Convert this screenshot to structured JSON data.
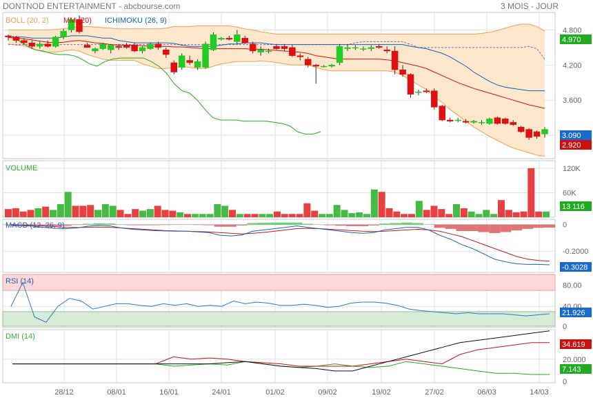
{
  "header": {
    "title": "DONTNOD ENTERTAINMENT - abcbourse.com",
    "period": "3 MOIS - JOUR"
  },
  "colors": {
    "up": "#22cc22",
    "down": "#e01010",
    "boll": "#f0a050",
    "boll_fill": "#fde7cc",
    "mm": "#d01010",
    "ichimoku": "#1060c0",
    "green_line": "#22aa22",
    "volume": "#44bb44",
    "rsi": "#2a78c8",
    "badge_green": "#22aa22",
    "badge_red": "#cc1111",
    "badge_blue": "#1a6acb"
  },
  "chart_data": [
    {
      "type": "candlestick",
      "panel": "price",
      "legend": [
        {
          "label": "BOLL (20, 2)",
          "color": "#f0a050"
        },
        {
          "label": "MM (20)",
          "color": "#d01010"
        },
        {
          "label": "ICHIMOKU (26, 9)",
          "color": "#1060c0"
        }
      ],
      "ylim": [
        2.6,
        5.1
      ],
      "yticks": [
        "4.800",
        "4.200",
        "3.600"
      ],
      "x_labels": [
        "28/12",
        "08/01",
        "16/01",
        "24/01",
        "01/02",
        "09/02",
        "19/02",
        "27/02",
        "06/03",
        "14/03"
      ],
      "candles": [
        [
          4.7,
          4.72,
          4.62,
          4.68
        ],
        [
          4.68,
          4.7,
          4.58,
          4.62
        ],
        [
          4.62,
          4.66,
          4.55,
          4.58
        ],
        [
          4.58,
          4.62,
          4.48,
          4.52
        ],
        [
          4.52,
          4.6,
          4.48,
          4.56
        ],
        [
          4.56,
          4.62,
          4.5,
          4.52
        ],
        [
          4.52,
          4.7,
          4.5,
          4.68
        ],
        [
          4.68,
          4.82,
          4.64,
          4.78
        ],
        [
          4.8,
          5.0,
          4.76,
          4.98
        ],
        [
          4.98,
          5.05,
          4.74,
          4.77
        ],
        [
          4.54,
          4.58,
          4.5,
          4.5
        ],
        [
          4.44,
          4.5,
          4.4,
          4.48
        ],
        [
          4.48,
          4.58,
          4.46,
          4.56
        ],
        [
          4.46,
          4.56,
          4.4,
          4.54
        ],
        [
          4.52,
          4.56,
          4.46,
          4.5
        ],
        [
          4.54,
          4.58,
          4.48,
          4.5
        ],
        [
          4.54,
          4.58,
          4.42,
          4.44
        ],
        [
          4.44,
          4.52,
          4.4,
          4.5
        ],
        [
          4.48,
          4.58,
          4.46,
          4.56
        ],
        [
          4.56,
          4.6,
          4.46,
          4.5
        ],
        [
          4.46,
          4.5,
          4.32,
          4.38
        ],
        [
          4.24,
          4.28,
          4.04,
          4.08
        ],
        [
          4.16,
          4.4,
          4.12,
          4.36
        ],
        [
          4.28,
          4.36,
          4.2,
          4.24
        ],
        [
          4.16,
          4.3,
          4.12,
          4.26
        ],
        [
          4.16,
          4.6,
          4.14,
          4.56
        ],
        [
          4.46,
          4.76,
          4.44,
          4.72
        ],
        [
          4.64,
          4.68,
          4.62,
          4.66
        ],
        [
          4.66,
          4.7,
          4.62,
          4.64
        ],
        [
          4.6,
          4.8,
          4.56,
          4.72
        ],
        [
          4.66,
          4.7,
          4.56,
          4.58
        ],
        [
          4.56,
          4.6,
          4.4,
          4.44
        ],
        [
          4.42,
          4.52,
          4.36,
          4.46
        ],
        [
          4.44,
          4.48,
          4.4,
          4.44
        ],
        [
          4.52,
          4.56,
          4.46,
          4.48
        ],
        [
          4.52,
          4.56,
          4.44,
          4.48
        ],
        [
          4.5,
          4.54,
          4.34,
          4.36
        ],
        [
          4.36,
          4.4,
          4.28,
          4.34
        ],
        [
          4.3,
          4.34,
          4.16,
          4.2
        ],
        [
          4.2,
          4.22,
          3.88,
          4.18
        ],
        [
          4.18,
          4.2,
          4.16,
          4.18
        ],
        [
          4.18,
          4.22,
          4.16,
          4.2
        ],
        [
          4.24,
          4.56,
          4.2,
          4.52
        ],
        [
          4.48,
          4.56,
          4.44,
          4.5
        ],
        [
          4.5,
          4.54,
          4.46,
          4.5
        ],
        [
          4.48,
          4.52,
          4.44,
          4.48
        ],
        [
          4.48,
          4.54,
          4.44,
          4.5
        ],
        [
          4.52,
          4.56,
          4.48,
          4.5
        ],
        [
          4.46,
          4.52,
          4.4,
          4.44
        ],
        [
          4.44,
          4.52,
          4.04,
          4.12
        ],
        [
          4.12,
          4.2,
          4.0,
          4.04
        ],
        [
          4.04,
          4.06,
          3.64,
          3.7
        ],
        [
          3.74,
          3.78,
          3.68,
          3.74
        ],
        [
          3.76,
          3.8,
          3.72,
          3.74
        ],
        [
          3.76,
          3.8,
          3.44,
          3.48
        ],
        [
          3.5,
          3.52,
          3.24,
          3.26
        ],
        [
          3.26,
          3.3,
          3.22,
          3.24
        ],
        [
          3.26,
          3.3,
          3.22,
          3.26
        ],
        [
          3.24,
          3.28,
          3.2,
          3.22
        ],
        [
          3.22,
          3.26,
          3.2,
          3.24
        ],
        [
          3.22,
          3.26,
          3.18,
          3.22
        ],
        [
          3.2,
          3.3,
          3.18,
          3.28
        ],
        [
          3.3,
          3.32,
          3.18,
          3.2
        ],
        [
          3.28,
          3.3,
          3.18,
          3.2
        ],
        [
          3.22,
          3.26,
          3.16,
          3.18
        ],
        [
          3.14,
          3.16,
          3.04,
          3.06
        ],
        [
          3.1,
          3.12,
          2.92,
          2.96
        ],
        [
          3.06,
          3.08,
          2.94,
          2.98
        ],
        [
          3.02,
          3.14,
          2.96,
          3.1
        ]
      ],
      "boll_upper": [
        4.8,
        4.8,
        4.8,
        4.8,
        4.8,
        4.8,
        4.81,
        4.82,
        4.84,
        4.86,
        4.86,
        4.85,
        4.84,
        4.83,
        4.82,
        4.82,
        4.82,
        4.82,
        4.82,
        4.82,
        4.83,
        4.86,
        4.86,
        4.86,
        4.87,
        4.87,
        4.87,
        4.87,
        4.87,
        4.85,
        4.82,
        4.8,
        4.77,
        4.75,
        4.73,
        4.73,
        4.73,
        4.73,
        4.73,
        4.73,
        4.73,
        4.73,
        4.73,
        4.73,
        4.73,
        4.73,
        4.73,
        4.73,
        4.73,
        4.73,
        4.73,
        4.73,
        4.73,
        4.73,
        4.73,
        4.73,
        4.73,
        4.73,
        4.73,
        4.73,
        4.74,
        4.76,
        4.79,
        4.83,
        4.87,
        4.9,
        4.9,
        4.86,
        4.78
      ],
      "boll_lower": [
        4.56,
        4.54,
        4.53,
        4.48,
        4.44,
        4.42,
        4.42,
        4.44,
        4.46,
        4.44,
        4.38,
        4.34,
        4.3,
        4.28,
        4.28,
        4.28,
        4.28,
        4.22,
        4.18,
        4.14,
        4.14,
        4.16,
        4.18,
        4.16,
        4.14,
        4.14,
        4.18,
        4.22,
        4.24,
        4.26,
        4.26,
        4.26,
        4.27,
        4.26,
        4.24,
        4.22,
        4.2,
        4.2,
        4.2,
        4.16,
        4.12,
        4.1,
        4.1,
        4.1,
        4.1,
        4.1,
        4.1,
        4.1,
        4.1,
        4.08,
        4.02,
        3.94,
        3.86,
        3.78,
        3.66,
        3.56,
        3.44,
        3.34,
        3.24,
        3.14,
        3.06,
        2.98,
        2.91,
        2.84,
        2.78,
        2.74,
        2.7,
        2.66,
        2.64
      ],
      "ma20": [
        4.67,
        4.66,
        4.65,
        4.63,
        4.61,
        4.59,
        4.58,
        4.59,
        4.61,
        4.62,
        4.6,
        4.58,
        4.57,
        4.55,
        4.54,
        4.54,
        4.54,
        4.53,
        4.52,
        4.52,
        4.52,
        4.51,
        4.51,
        4.5,
        4.49,
        4.48,
        4.48,
        4.48,
        4.48,
        4.48,
        4.48,
        4.47,
        4.47,
        4.46,
        4.45,
        4.44,
        4.43,
        4.42,
        4.4,
        4.36,
        4.34,
        4.32,
        4.3,
        4.3,
        4.3,
        4.3,
        4.3,
        4.3,
        4.29,
        4.27,
        4.24,
        4.21,
        4.18,
        4.14,
        4.08,
        4.02,
        3.96,
        3.9,
        3.85,
        3.8,
        3.76,
        3.72,
        3.68,
        3.64,
        3.6,
        3.56,
        3.52,
        3.49,
        3.46
      ],
      "ichimoku_line": [
        4.68,
        4.68,
        4.68,
        4.66,
        4.66,
        4.66,
        4.66,
        4.68,
        4.7,
        4.7,
        4.7,
        4.68,
        4.66,
        4.66,
        4.62,
        4.6,
        4.58,
        4.58,
        4.58,
        4.58,
        4.58,
        4.57,
        4.54,
        4.52,
        4.52,
        4.52,
        4.52,
        4.54,
        4.56,
        4.56,
        4.58,
        4.58,
        4.58,
        4.56,
        4.55,
        4.55,
        4.55,
        4.55,
        4.55,
        4.55,
        4.55,
        4.55,
        4.55,
        4.55,
        4.55,
        4.55,
        4.55,
        4.55,
        4.55,
        4.55,
        4.55,
        4.52,
        4.5,
        4.48,
        4.44,
        4.4,
        4.34,
        4.26,
        4.18,
        4.08,
        4.0,
        3.92,
        3.86,
        3.82,
        3.8,
        3.78,
        3.76,
        3.76,
        3.76
      ],
      "ichimoku_top": [
        4.55,
        4.55,
        4.55,
        4.55,
        4.55,
        4.55,
        4.55,
        4.55,
        4.55,
        4.55,
        4.55,
        4.55,
        4.55,
        4.55,
        4.55,
        4.55,
        4.55,
        4.55,
        4.55,
        4.55,
        4.55,
        4.55,
        4.55,
        4.55,
        4.55,
        4.55,
        4.55,
        4.55,
        4.55,
        4.55,
        4.55,
        4.55,
        4.55,
        4.55,
        4.55,
        4.55,
        4.55,
        4.55,
        4.55,
        4.55,
        4.55,
        4.55,
        4.55,
        4.55,
        4.58,
        4.6,
        4.6,
        4.6,
        4.6,
        4.6,
        4.6,
        4.55,
        4.5,
        4.5,
        4.5,
        4.5,
        4.5,
        4.5,
        4.5,
        4.5,
        4.5,
        4.5,
        4.5,
        4.5,
        4.5,
        4.5,
        4.52,
        4.48,
        4.3
      ],
      "green_line": [
        4.7,
        4.6,
        4.52,
        4.46,
        4.44,
        4.4,
        4.38,
        4.38,
        4.36,
        4.3,
        4.22,
        4.18,
        4.26,
        4.3,
        4.32,
        4.32,
        4.32,
        4.32,
        4.26,
        4.18,
        4.06,
        3.88,
        3.76,
        3.72,
        3.6,
        3.44,
        3.3,
        3.26,
        3.26,
        3.26,
        3.24,
        3.24,
        3.24,
        3.24,
        3.22,
        3.2,
        3.16,
        3.06,
        3.02,
        3.02,
        3.06
      ],
      "last_badges": [
        {
          "value": "4.970",
          "color": "#22aa22"
        },
        {
          "value": "3.090",
          "color": "#1a6acb"
        },
        {
          "value": "2.920",
          "color": "#cc1111"
        }
      ]
    },
    {
      "type": "bar",
      "panel": "volume",
      "title": "VOLUME",
      "yticks": [
        "120K",
        "60K"
      ],
      "ylim": [
        0,
        135000
      ],
      "values": [
        20000,
        22000,
        14000,
        18000,
        22000,
        26000,
        18000,
        32000,
        62000,
        28000,
        28000,
        30000,
        18000,
        32000,
        28000,
        18000,
        8000,
        20000,
        16000,
        20000,
        28000,
        18000,
        16000,
        12000,
        8000,
        8000,
        8000,
        8000,
        32000,
        28000,
        18000,
        8000,
        8000,
        8000,
        8000,
        8000,
        14000,
        8000,
        8000,
        8000,
        34000,
        16000,
        8000,
        8000,
        30000,
        18000,
        10000,
        12000,
        8000,
        68000,
        62000,
        22000,
        14000,
        8000,
        8000,
        40000,
        18000,
        28000,
        20000,
        8000,
        32000,
        22000,
        14000,
        8000,
        18000,
        8000,
        42000,
        18000,
        12000,
        14000,
        120000,
        14000,
        14000
      ],
      "last_badge": {
        "value": "13 116",
        "color": "#22aa22"
      }
    },
    {
      "type": "line",
      "panel": "macd",
      "title": "MACD (12, 26, 9)",
      "yticks": [
        "0",
        "-0.2000"
      ],
      "ylim": [
        -0.36,
        0.04
      ],
      "macd": [
        -0.005,
        -0.008,
        -0.012,
        -0.02,
        -0.028,
        -0.03,
        -0.025,
        -0.012,
        -0.005,
        -0.01,
        -0.025,
        -0.035,
        -0.04,
        -0.045,
        -0.048,
        -0.05,
        -0.05,
        -0.055,
        -0.06,
        -0.08,
        -0.085,
        -0.078,
        -0.05,
        -0.04,
        -0.03,
        -0.02,
        -0.01,
        -0.02,
        -0.03,
        -0.04,
        -0.05,
        -0.06,
        -0.065,
        -0.06,
        -0.04,
        -0.03,
        -0.02,
        -0.02,
        -0.04,
        -0.08,
        -0.11,
        -0.15,
        -0.18,
        -0.22,
        -0.26,
        -0.28,
        -0.295,
        -0.3,
        -0.3,
        -0.303
      ],
      "signal": [
        0.0,
        -0.002,
        -0.005,
        -0.01,
        -0.015,
        -0.02,
        -0.022,
        -0.02,
        -0.018,
        -0.02,
        -0.025,
        -0.03,
        -0.035,
        -0.04,
        -0.045,
        -0.048,
        -0.05,
        -0.052,
        -0.055,
        -0.06,
        -0.065,
        -0.07,
        -0.065,
        -0.058,
        -0.05,
        -0.04,
        -0.03,
        -0.028,
        -0.03,
        -0.035,
        -0.04,
        -0.045,
        -0.05,
        -0.052,
        -0.05,
        -0.045,
        -0.04,
        -0.035,
        -0.04,
        -0.05,
        -0.07,
        -0.09,
        -0.12,
        -0.15,
        -0.18,
        -0.21,
        -0.24,
        -0.26,
        -0.27,
        -0.275
      ],
      "histogram_band": "fill between macd and signal",
      "last_badge": {
        "value": "-0.3028",
        "color": "#1a6acb"
      }
    },
    {
      "type": "line",
      "panel": "rsi",
      "title": "RSI (14)",
      "yticks": [
        "80.00",
        "40.00",
        "0"
      ],
      "ylim": [
        0,
        100
      ],
      "values": [
        40,
        85,
        20,
        10,
        40,
        55,
        50,
        35,
        40,
        45,
        45,
        42,
        40,
        45,
        42,
        45,
        40,
        42,
        40,
        50,
        45,
        48,
        46,
        42,
        42,
        44,
        42,
        38,
        40,
        46,
        48,
        48,
        46,
        42,
        35,
        32,
        30,
        28,
        26,
        28,
        26,
        26,
        26,
        24,
        22,
        24,
        26
      ],
      "last_badge": {
        "value": "21.926",
        "color": "#1a6acb"
      }
    },
    {
      "type": "line",
      "panel": "dmi",
      "title": "DMI (14)",
      "yticks": [
        "20.000",
        "0"
      ],
      "ylim": [
        0,
        45
      ],
      "plus_di": [
        16,
        16,
        16,
        16,
        16,
        16,
        16,
        16,
        16,
        14,
        15,
        16,
        15,
        18,
        16,
        14,
        13,
        14,
        16,
        14,
        13,
        14,
        18,
        16,
        14,
        12,
        10,
        8,
        8,
        7,
        7
      ],
      "minus_di": [
        16,
        16,
        16,
        16,
        16,
        16,
        16,
        16,
        16,
        22,
        20,
        21,
        20,
        18,
        17,
        16,
        14,
        14,
        14,
        14,
        16,
        18,
        20,
        18,
        16,
        24,
        28,
        30,
        32,
        34,
        34
      ],
      "adx": [
        16,
        16,
        16,
        16,
        16,
        16,
        16,
        16,
        16,
        16,
        16,
        16,
        17,
        18,
        16,
        14,
        13,
        12,
        10,
        10,
        14,
        18,
        22,
        26,
        30,
        34,
        36,
        38,
        40,
        42,
        44
      ],
      "last_badges": [
        {
          "value": "34.619",
          "color": "#cc1111"
        },
        {
          "value": "7.143",
          "color": "#22aa22"
        }
      ]
    }
  ]
}
